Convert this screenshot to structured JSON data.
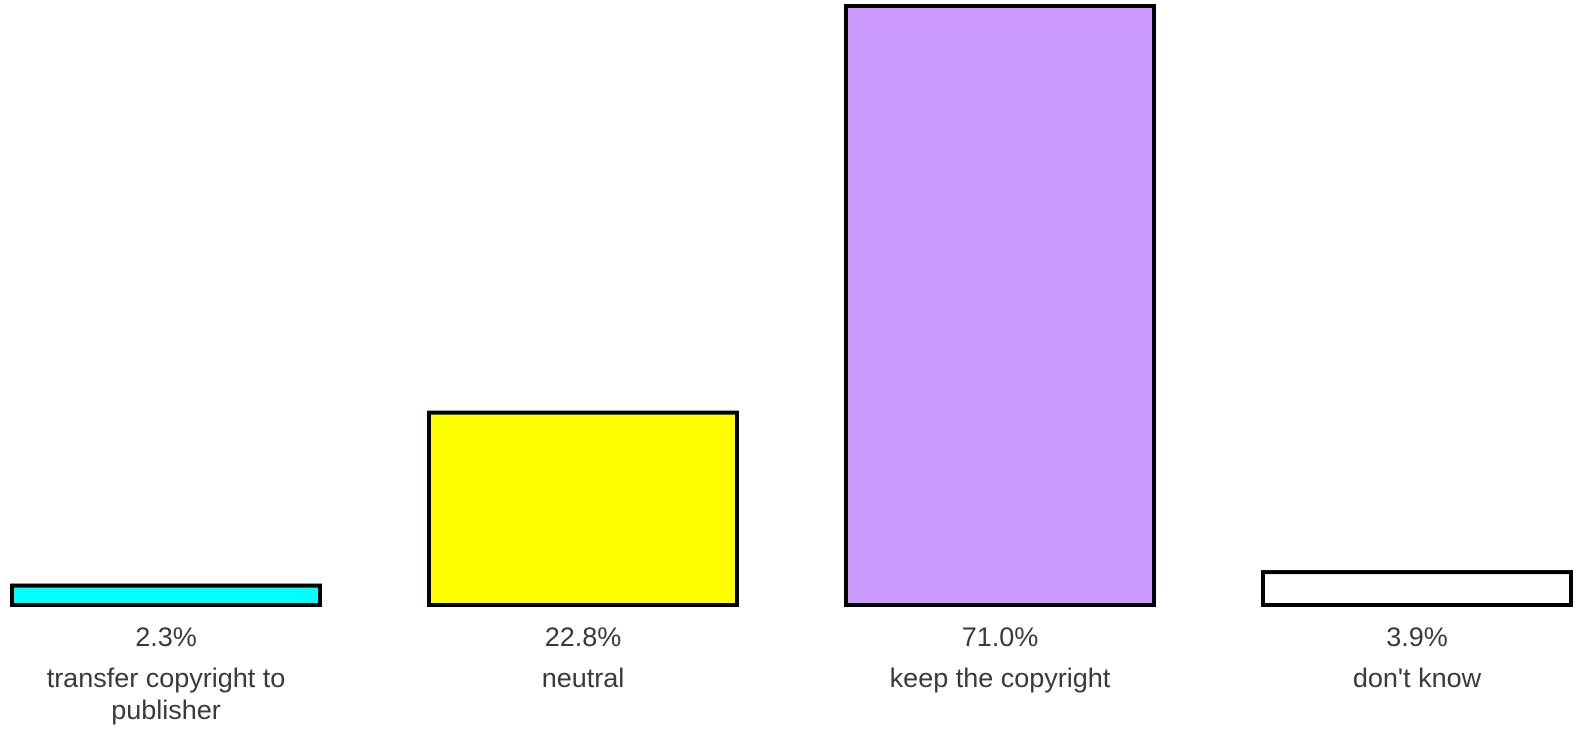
{
  "chart_data": {
    "type": "bar",
    "categories": [
      "transfer copyright to publisher",
      "neutral",
      "keep the copyright",
      "don't know"
    ],
    "values": [
      2.3,
      22.8,
      71.0,
      3.9
    ],
    "value_labels": [
      "2.3%",
      "22.8%",
      "71.0%",
      "3.9%"
    ],
    "category_labels": [
      [
        "transfer copyright to",
        "publisher"
      ],
      [
        "neutral"
      ],
      [
        "keep the copyright"
      ],
      [
        "don't know"
      ]
    ],
    "colors": [
      "#00ffff",
      "#ffff00",
      "#cc99ff",
      "#ffffff"
    ],
    "title": "",
    "xlabel": "",
    "ylabel": "",
    "ylim": [
      0,
      71.0
    ],
    "grid": false,
    "legend": "none"
  }
}
